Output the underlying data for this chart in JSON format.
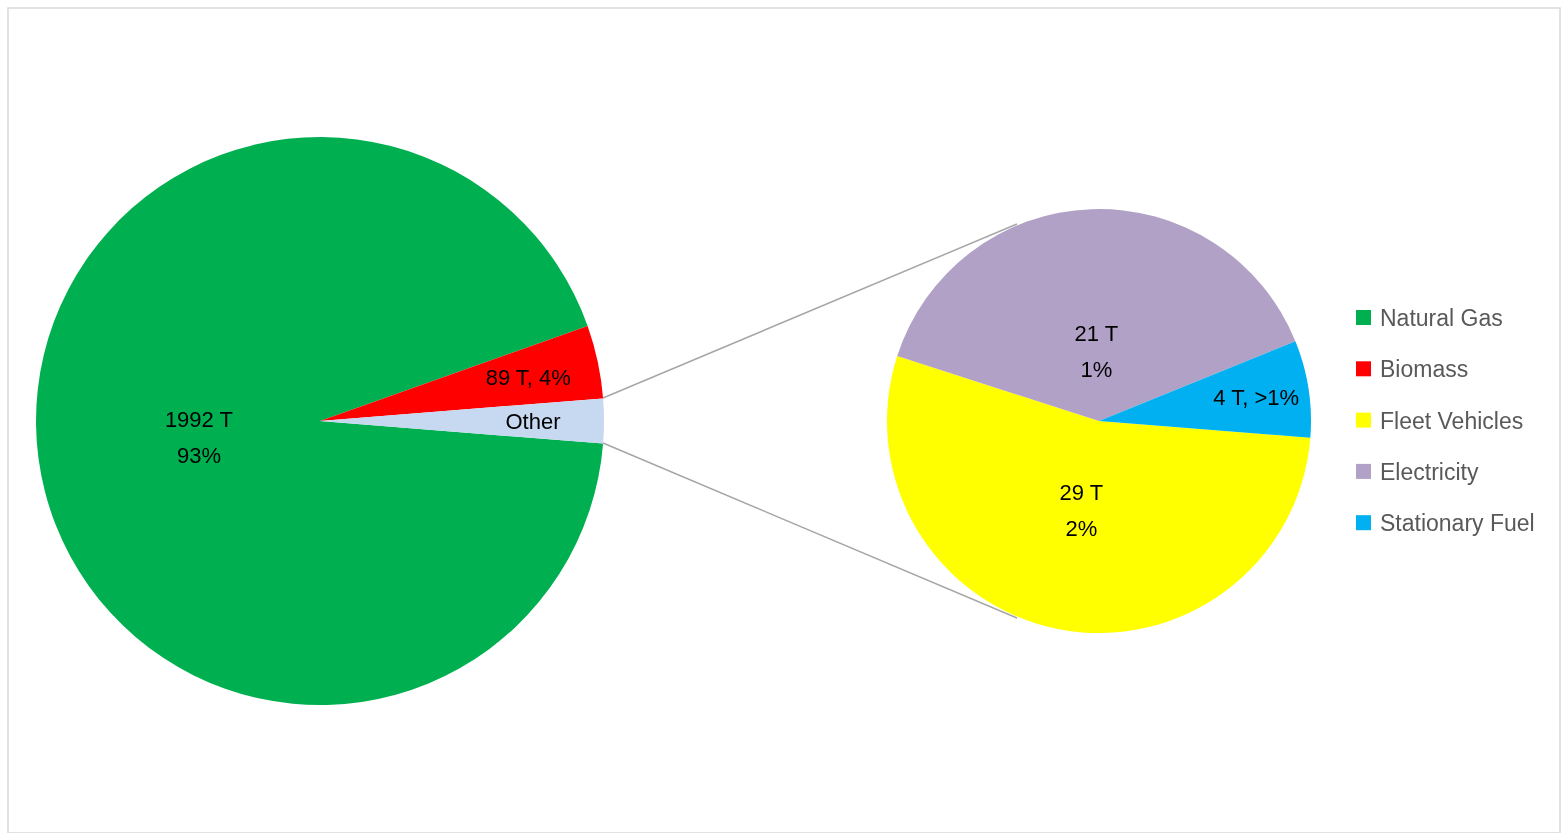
{
  "chart_data": [
    {
      "type": "pie",
      "categories": [
        "Natural Gas",
        "Biomass",
        null
      ],
      "values": [
        1992,
        89,
        54
      ],
      "colors": [
        "#00b050",
        "#ff0000",
        "#c6d9f0"
      ],
      "value_labels": [
        "1992 T\n93%",
        "89 T, 4%",
        "Other"
      ],
      "legend": "right"
    },
    {
      "type": "pie",
      "categories": [
        "Fleet Vehicles",
        "Electricity",
        "Stationary Fuel"
      ],
      "values": [
        29,
        21,
        4
      ],
      "colors": [
        "#ffff00",
        "#b1a1c7",
        "#00b0f0"
      ],
      "value_labels": [
        "29 T\n2%",
        "21 T\n1%",
        "4 T, >1%"
      ],
      "legend": "right"
    }
  ]
}
